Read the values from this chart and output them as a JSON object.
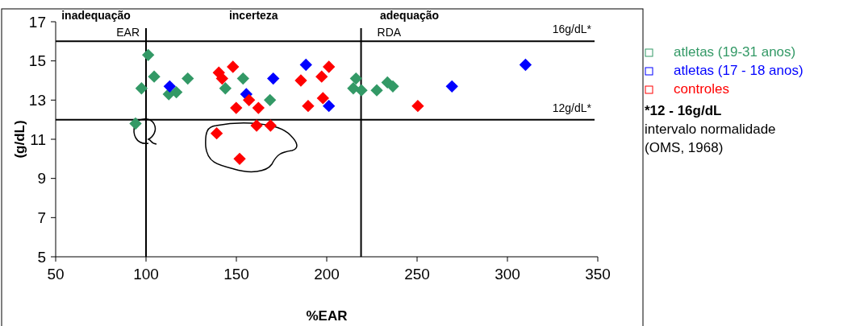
{
  "chart_data": {
    "type": "scatter",
    "xlabel": "%EAR",
    "ylabel": "(g/dL)",
    "xlim": [
      50,
      350
    ],
    "ylim": [
      5,
      17
    ],
    "xticks": [
      50,
      100,
      150,
      200,
      250,
      300,
      350
    ],
    "yticks": [
      5,
      7,
      9,
      11,
      13,
      15,
      17
    ],
    "marker": "diamond",
    "legend": "right",
    "grid": false,
    "series": [
      {
        "name": "atletas (19-31 anos)",
        "color": "#339966",
        "x": [
          97.5,
          101.2,
          104.5,
          112.6,
          116.8,
          123.1,
          94.2,
          143.9,
          153.7,
          168.6,
          216.2,
          214.7,
          219.2,
          227.7,
          233.6,
          236.6
        ],
        "values": [
          13.6,
          15.3,
          14.2,
          13.3,
          13.4,
          14.1,
          11.8,
          13.6,
          14.1,
          13.0,
          14.1,
          13.6,
          13.5,
          13.5,
          13.9,
          13.7
        ]
      },
      {
        "name": "atletas (17 - 18 anos)",
        "color": "#0000ff",
        "x": [
          113.1,
          155.5,
          170.4,
          188.5,
          201.2,
          269.3,
          310
        ],
        "values": [
          13.7,
          13.3,
          14.1,
          14.8,
          12.7,
          13.7,
          14.8
        ]
      },
      {
        "name": "controles",
        "color": "#ff0000",
        "x": [
          140.3,
          142.1,
          148.1,
          149.9,
          157,
          162.2,
          139.1,
          161.2,
          168.9,
          151.8,
          185.7,
          197.2,
          201.2,
          189.7,
          197.9,
          250.4
        ],
        "values": [
          14.4,
          14.1,
          14.7,
          12.6,
          13.0,
          12.6,
          11.3,
          11.7,
          11.7,
          10.0,
          14.0,
          14.2,
          14.7,
          12.7,
          13.1,
          12.7
        ]
      }
    ],
    "ref_lines": [
      {
        "axis": "x",
        "value": 100,
        "label": "EAR",
        "color": "#000000"
      },
      {
        "axis": "x",
        "value": 219,
        "label": "RDA",
        "color": "#000000"
      },
      {
        "axis": "y",
        "value": 16,
        "label": "16g/dL*",
        "color": "#000000"
      },
      {
        "axis": "y",
        "value": 12,
        "label": "12g/dL*",
        "color": "#000000"
      }
    ],
    "annotations": [
      "inadequação",
      "incerteza",
      "adequação",
      "*12 - 16g/dL",
      "intervalo normalidade",
      "(OMS, 1968)"
    ]
  }
}
